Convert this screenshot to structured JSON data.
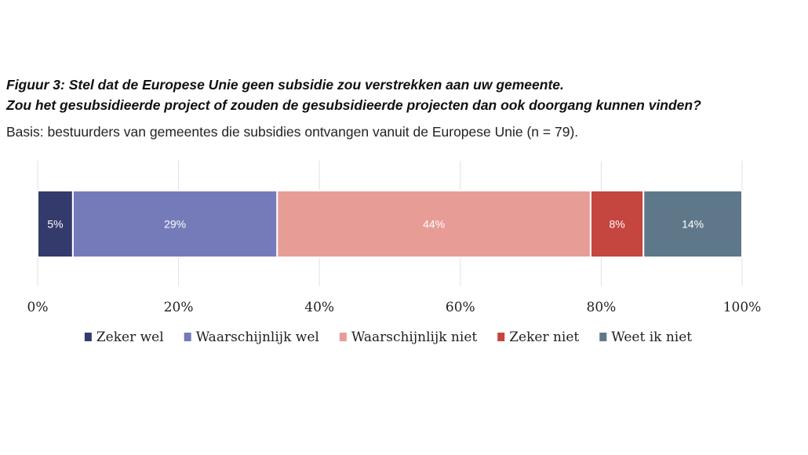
{
  "header": {
    "title_line1": "Figuur 3: Stel dat de Europese Unie geen subsidie zou verstrekken aan uw gemeente.",
    "title_line2": "Zou het gesubsidieerde project of zouden de gesubsidieerde projecten dan ook doorgang kunnen vinden?",
    "subtitle": "Basis: bestuurders van gemeentes die subsidies ontvangen vanuit de Europese Unie (n = 79)."
  },
  "chart_data": {
    "type": "bar",
    "orientation": "horizontal",
    "stacked": true,
    "title": "Figuur 3: Stel dat de Europese Unie geen subsidie zou verstrekken aan uw gemeente. Zou het gesubsidieerde project of zouden de gesubsidieerde projecten dan ook doorgang kunnen vinden?",
    "subtitle": "Basis: bestuurders van gemeentes die subsidies ontvangen vanuit de Europese Unie (n = 79).",
    "xlim": [
      0,
      100
    ],
    "xticks": [
      "0%",
      "20%",
      "40%",
      "60%",
      "80%",
      "100%"
    ],
    "xtick_values": [
      0,
      20,
      40,
      60,
      80,
      100
    ],
    "grid": true,
    "legend_position": "bottom",
    "series": [
      {
        "name": "Zeker wel",
        "value": 5,
        "label": "5%",
        "color": "#343a6b"
      },
      {
        "name": "Waarschijnlijk wel",
        "value": 29,
        "label": "29%",
        "color": "#757ab8"
      },
      {
        "name": "Waarschijnlijk niet",
        "value": 44.5,
        "label": "44%",
        "color": "#e89c96"
      },
      {
        "name": "Zeker niet",
        "value": 7.5,
        "label": "8%",
        "color": "#c5453f"
      },
      {
        "name": "Weet ik niet",
        "value": 14,
        "label": "14%",
        "color": "#5e788a"
      }
    ]
  }
}
